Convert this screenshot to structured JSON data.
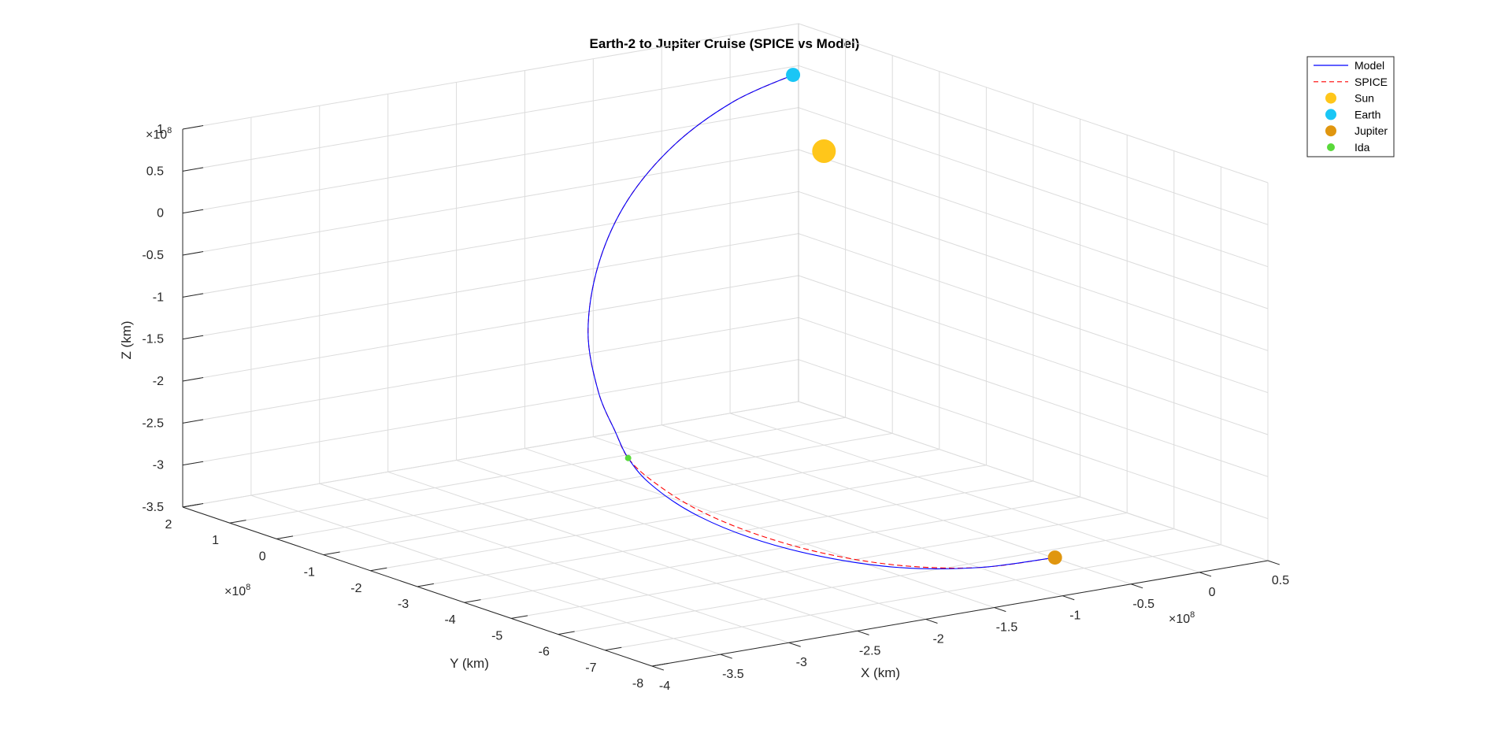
{
  "chart_data": {
    "type": "line3d",
    "title": "Earth-2 to Jupiter Cruise (SPICE vs Model)",
    "xlabel": "X (km)",
    "ylabel": "Y (km)",
    "zlabel": "Z (km)",
    "xlim": [
      -4,
      0.5
    ],
    "ylim": [
      -8,
      2
    ],
    "zlim": [
      -3.5,
      1
    ],
    "exponent": "8",
    "exponent_base": "×10",
    "x_ticks": [
      -4,
      -3.5,
      -3,
      -2.5,
      -2,
      -1.5,
      -1,
      -0.5,
      0,
      0.5
    ],
    "x_tick_labels": [
      "-4",
      "-3.5",
      "-3",
      "-2.5",
      "-2",
      "-1.5",
      "-1",
      "-0.5",
      "0",
      "0.5"
    ],
    "y_ticks": [
      -8,
      -7,
      -6,
      -5,
      -4,
      -3,
      -2,
      -1,
      0,
      1,
      2
    ],
    "y_tick_labels": [
      "-8",
      "-7",
      "-6",
      "-5",
      "-4",
      "-3",
      "-2",
      "-1",
      "0",
      "1",
      "2"
    ],
    "z_ticks": [
      -3.5,
      -3,
      -2.5,
      -2,
      -1.5,
      -1,
      -0.5,
      0,
      0.5,
      1
    ],
    "z_tick_labels": [
      "-3.5",
      "-3",
      "-2.5",
      "-2",
      "-1.5",
      "-1",
      "-0.5",
      "0",
      "0.5",
      "1"
    ],
    "grid": true,
    "legend_position": "top-right",
    "legend": [
      {
        "label": "Model",
        "kind": "line",
        "color": "#0000ff"
      },
      {
        "label": "SPICE",
        "kind": "dash",
        "color": "#ff0000"
      },
      {
        "label": "Sun",
        "kind": "marker",
        "color": "#ffc61a"
      },
      {
        "label": "Earth",
        "kind": "marker",
        "color": "#1ac6f5"
      },
      {
        "label": "Jupiter",
        "kind": "marker",
        "color": "#e0960f"
      },
      {
        "label": "Ida",
        "kind": "marker",
        "color": "#59d93a"
      }
    ],
    "series": [
      {
        "name": "Model",
        "color": "#0000ff",
        "style": "solid",
        "points": [
          [
            -0.14,
            0.25,
            0.9
          ],
          [
            -0.7,
            -0.1,
            0.8
          ],
          [
            -1.3,
            -0.6,
            0.55
          ],
          [
            -1.85,
            -1.2,
            0.15
          ],
          [
            -2.3,
            -1.9,
            -0.35
          ],
          [
            -2.65,
            -2.7,
            -0.9
          ],
          [
            -2.85,
            -3.5,
            -1.4
          ],
          [
            -2.93,
            -4.1,
            -1.75
          ],
          [
            -2.94,
            -4.4,
            -2.0
          ],
          [
            -2.9,
            -4.75,
            -2.25
          ],
          [
            -2.75,
            -5.2,
            -2.55
          ],
          [
            -2.5,
            -5.7,
            -2.82
          ],
          [
            -2.15,
            -6.2,
            -3.05
          ],
          [
            -1.75,
            -6.7,
            -3.2
          ],
          [
            -1.3,
            -7.1,
            -3.25
          ],
          [
            -0.85,
            -7.4,
            -3.2
          ]
        ]
      },
      {
        "name": "SPICE",
        "color": "#ff0000",
        "style": "dashed",
        "points": [
          [
            -0.14,
            0.25,
            0.9
          ],
          [
            -0.7,
            -0.1,
            0.8
          ],
          [
            -1.3,
            -0.6,
            0.55
          ],
          [
            -1.85,
            -1.2,
            0.15
          ],
          [
            -2.3,
            -1.9,
            -0.35
          ],
          [
            -2.65,
            -2.7,
            -0.9
          ],
          [
            -2.85,
            -3.5,
            -1.4
          ],
          [
            -2.93,
            -4.1,
            -1.75
          ],
          [
            -2.94,
            -4.4,
            -2.0
          ],
          [
            -2.88,
            -4.72,
            -2.22
          ],
          [
            -2.72,
            -5.17,
            -2.51
          ],
          [
            -2.47,
            -5.67,
            -2.78
          ],
          [
            -2.13,
            -6.18,
            -3.02
          ],
          [
            -1.74,
            -6.69,
            -3.18
          ],
          [
            -1.3,
            -7.1,
            -3.25
          ],
          [
            -0.85,
            -7.4,
            -3.2
          ]
        ]
      }
    ],
    "bodies": [
      {
        "name": "Sun",
        "position": [
          0,
          0,
          0
        ],
        "color": "#ffc61a",
        "size": 15
      },
      {
        "name": "Earth",
        "position": [
          -0.14,
          0.25,
          0.9
        ],
        "color": "#1ac6f5",
        "size": 9
      },
      {
        "name": "Jupiter",
        "position": [
          -0.85,
          -7.4,
          -3.2
        ],
        "color": "#e0960f",
        "size": 9
      },
      {
        "name": "Ida",
        "position": [
          -2.94,
          -4.4,
          -2.0
        ],
        "color": "#59d93a",
        "size": 4
      }
    ]
  }
}
